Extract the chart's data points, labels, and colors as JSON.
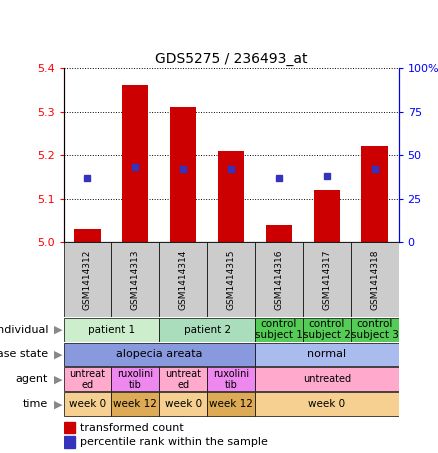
{
  "title": "GDS5275 / 236493_at",
  "samples": [
    "GSM1414312",
    "GSM1414313",
    "GSM1414314",
    "GSM1414315",
    "GSM1414316",
    "GSM1414317",
    "GSM1414318"
  ],
  "red_values": [
    5.03,
    5.36,
    5.31,
    5.21,
    5.04,
    5.12,
    5.22
  ],
  "blue_values_pct": [
    37,
    43,
    42,
    42,
    37,
    38,
    42
  ],
  "ylim": [
    5.0,
    5.4
  ],
  "y2lim": [
    0,
    100
  ],
  "yticks": [
    5.0,
    5.1,
    5.2,
    5.3,
    5.4
  ],
  "y2ticks": [
    0,
    25,
    50,
    75,
    100
  ],
  "y2ticklabels": [
    "0",
    "25",
    "50",
    "75",
    "100%"
  ],
  "bar_color": "#cc0000",
  "dot_color": "#3333bb",
  "bar_width": 0.55,
  "individual_groups": [
    {
      "label": "patient 1",
      "cols": [
        0,
        1
      ],
      "color": "#cceecc"
    },
    {
      "label": "patient 2",
      "cols": [
        2,
        3
      ],
      "color": "#aaddbb"
    },
    {
      "label": "control\nsubject 1",
      "cols": [
        4
      ],
      "color": "#55cc55"
    },
    {
      "label": "control\nsubject 2",
      "cols": [
        5
      ],
      "color": "#55cc55"
    },
    {
      "label": "control\nsubject 3",
      "cols": [
        6
      ],
      "color": "#55cc55"
    }
  ],
  "disease_groups": [
    {
      "label": "alopecia areata",
      "cols": [
        0,
        1,
        2,
        3
      ],
      "color": "#8899dd"
    },
    {
      "label": "normal",
      "cols": [
        4,
        5,
        6
      ],
      "color": "#aabbee"
    }
  ],
  "agent_groups": [
    {
      "label": "untreat\ned",
      "cols": [
        0
      ],
      "color": "#ffaacc"
    },
    {
      "label": "ruxolini\ntib",
      "cols": [
        1
      ],
      "color": "#ee88ee"
    },
    {
      "label": "untreat\ned",
      "cols": [
        2
      ],
      "color": "#ffaacc"
    },
    {
      "label": "ruxolini\ntib",
      "cols": [
        3
      ],
      "color": "#ee88ee"
    },
    {
      "label": "untreated",
      "cols": [
        4,
        5,
        6
      ],
      "color": "#ffaacc"
    }
  ],
  "time_groups": [
    {
      "label": "week 0",
      "cols": [
        0
      ],
      "color": "#f5d090"
    },
    {
      "label": "week 12",
      "cols": [
        1
      ],
      "color": "#ddaa55"
    },
    {
      "label": "week 0",
      "cols": [
        2
      ],
      "color": "#f5d090"
    },
    {
      "label": "week 12",
      "cols": [
        3
      ],
      "color": "#ddaa55"
    },
    {
      "label": "week 0",
      "cols": [
        4,
        5,
        6
      ],
      "color": "#f5d090"
    }
  ],
  "sample_bg_color": "#cccccc",
  "row_label_names": [
    "individual",
    "disease state",
    "agent",
    "time"
  ]
}
